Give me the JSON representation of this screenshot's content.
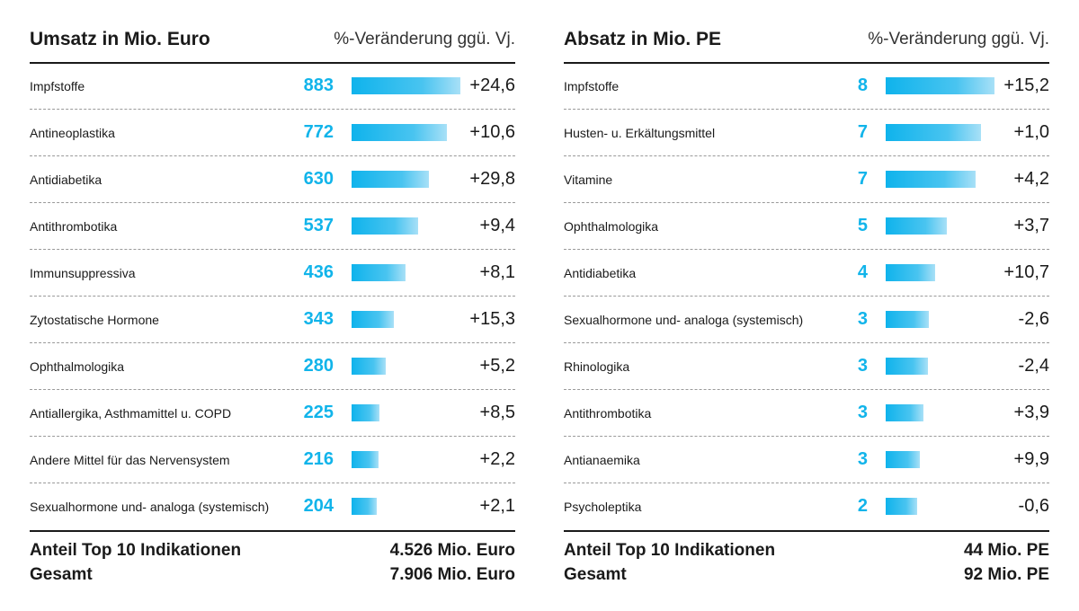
{
  "chart_data": [
    {
      "type": "bar",
      "title": "Umsatz in Mio. Euro",
      "change_header": "%-Veränderung ggü. Vj.",
      "max_value": 883,
      "rows": [
        {
          "label": "Impfstoffe",
          "value": 883,
          "change": "+24,6"
        },
        {
          "label": "Antineoplastika",
          "value": 772,
          "change": "+10,6"
        },
        {
          "label": "Antidiabetika",
          "value": 630,
          "change": "+29,8"
        },
        {
          "label": "Antithrombotika",
          "value": 537,
          "change": "+9,4"
        },
        {
          "label": "Immunsuppressiva",
          "value": 436,
          "change": "+8,1"
        },
        {
          "label": "Zytostatische Hormone",
          "value": 343,
          "change": "+15,3"
        },
        {
          "label": "Ophthalmologika",
          "value": 280,
          "change": "+5,2"
        },
        {
          "label": "Antiallergika, Asthmamittel u. COPD",
          "value": 225,
          "change": "+8,5"
        },
        {
          "label": "Andere Mittel für das Nervensystem",
          "value": 216,
          "change": "+2,2"
        },
        {
          "label": "Sexualhormone und- analoga (systemisch)",
          "value": 204,
          "change": "+2,1"
        }
      ],
      "footer": [
        {
          "label": "Anteil Top 10 Indikationen",
          "value": "4.526 Mio. Euro"
        },
        {
          "label": "Gesamt",
          "value": "7.906 Mio. Euro"
        }
      ]
    },
    {
      "type": "bar",
      "title": "Absatz in Mio. PE",
      "change_header": "%-Veränderung ggü. Vj.",
      "max_value": 8,
      "rows": [
        {
          "label": "Impfstoffe",
          "value": 8,
          "bar_value": 8.0,
          "change": "+15,2"
        },
        {
          "label": "Husten- u. Erkältungsmittel",
          "value": 7,
          "bar_value": 7.0,
          "change": "+1,0"
        },
        {
          "label": "Vitamine",
          "value": 7,
          "bar_value": 6.6,
          "change": "+4,2"
        },
        {
          "label": "Ophthalmologika",
          "value": 5,
          "bar_value": 4.5,
          "change": "+3,7"
        },
        {
          "label": "Antidiabetika",
          "value": 4,
          "bar_value": 3.6,
          "change": "+10,7"
        },
        {
          "label": "Sexualhormone und- analoga (systemisch)",
          "value": 3,
          "bar_value": 3.2,
          "change": "-2,6"
        },
        {
          "label": "Rhinologika",
          "value": 3,
          "bar_value": 3.1,
          "change": "-2,4"
        },
        {
          "label": "Antithrombotika",
          "value": 3,
          "bar_value": 2.8,
          "change": "+3,9"
        },
        {
          "label": "Antianaemika",
          "value": 3,
          "bar_value": 2.5,
          "change": "+9,9"
        },
        {
          "label": "Psycholeptika",
          "value": 2,
          "bar_value": 2.3,
          "change": "-0,6"
        }
      ],
      "footer": [
        {
          "label": "Anteil Top 10 Indikationen",
          "value": "44 Mio. PE"
        },
        {
          "label": "Gesamt",
          "value": "92 Mio. PE"
        }
      ]
    }
  ]
}
